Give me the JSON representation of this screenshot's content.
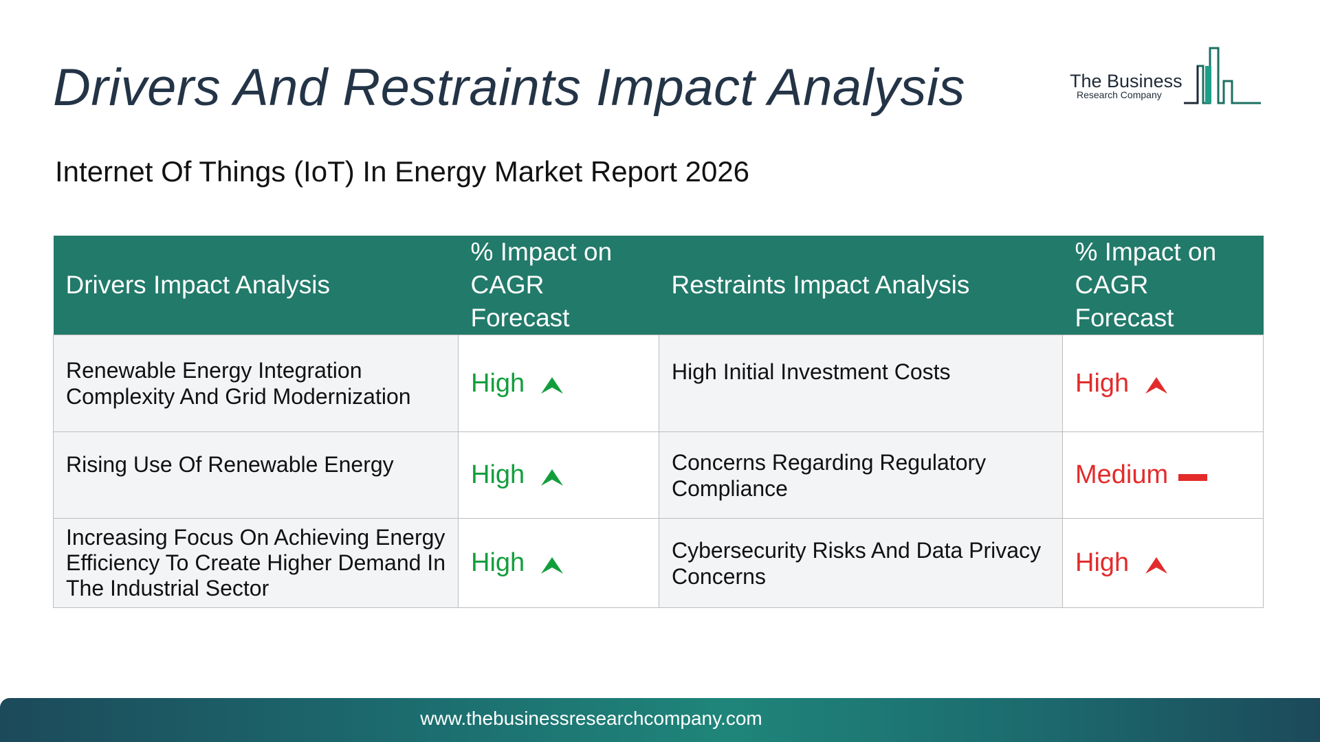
{
  "title": "Drivers And Restraints Impact Analysis",
  "subtitle": "Internet Of Things (IoT) In Energy Market Report 2026",
  "logo": {
    "name": "The Business",
    "tagline": "Research Company"
  },
  "table": {
    "headers": {
      "drivers": "Drivers Impact Analysis",
      "drivers_impact": "% Impact on CAGR Forecast",
      "restraints": "Restraints Impact Analysis",
      "restraints_impact": "% Impact on CAGR Forecast"
    },
    "rows": [
      {
        "driver": "Renewable Energy Integration Complexity And Grid Modernization",
        "driver_impact": "High",
        "driver_icon": "arrow-up-icon",
        "restraint": "High Initial Investment Costs",
        "restraint_impact": "High",
        "restraint_icon": "arrow-up-icon"
      },
      {
        "driver": "Rising Use Of Renewable Energy",
        "driver_impact": "High",
        "driver_icon": "arrow-up-icon",
        "restraint": "Concerns Regarding Regulatory Compliance",
        "restraint_impact": "Medium",
        "restraint_icon": "dash-icon"
      },
      {
        "driver": "Increasing Focus On Achieving Energy Efficiency To Create Higher Demand In The Industrial Sector",
        "driver_impact": "High",
        "driver_icon": "arrow-up-icon",
        "restraint": "Cybersecurity Risks And Data Privacy Concerns",
        "restraint_impact": "High",
        "restraint_icon": "arrow-up-icon"
      }
    ]
  },
  "colors": {
    "header_bg": "#227a6a",
    "driver_impact": "#139e3c",
    "restraint_impact": "#e32b2b",
    "title": "#243447"
  },
  "footer": {
    "url": "www.thebusinessresearchcompany.com"
  }
}
